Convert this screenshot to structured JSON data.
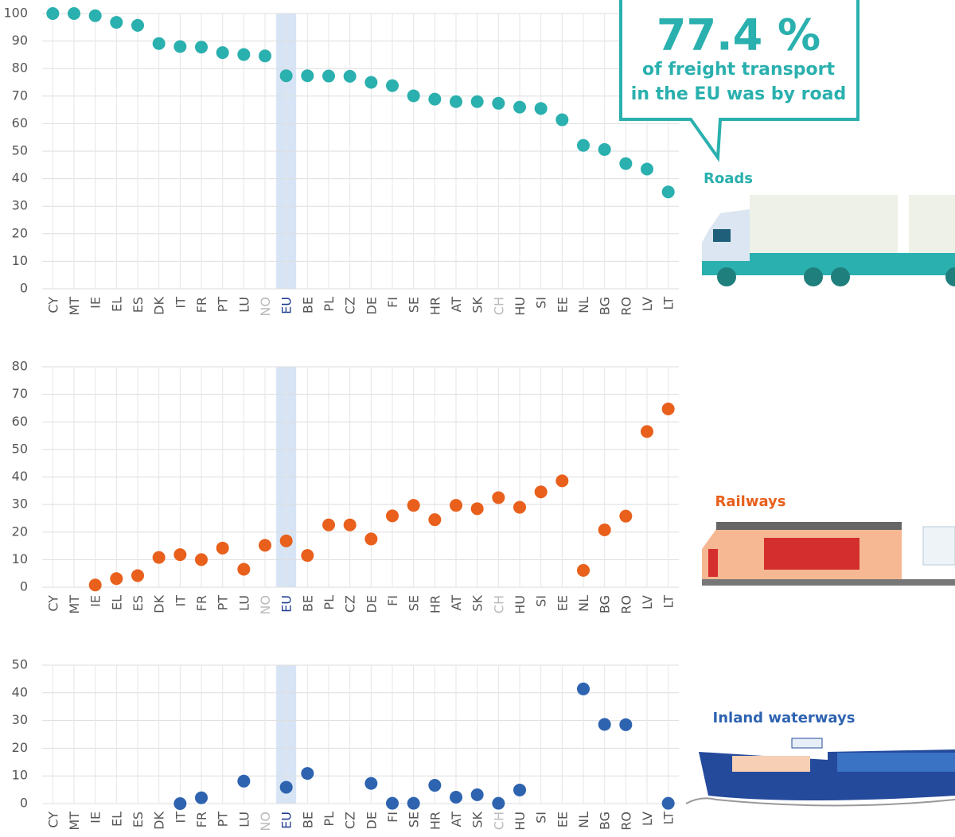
{
  "callout": {
    "headline": "77.4 %",
    "lines": [
      "of freight transport",
      "in the EU was by road"
    ]
  },
  "chart_data": [
    {
      "type": "dot",
      "title": "Roads",
      "color": "#2ab0ae",
      "categories": [
        "CY",
        "MT",
        "IE",
        "EL",
        "ES",
        "DK",
        "IT",
        "FR",
        "PT",
        "LU",
        "NO",
        "EU",
        "BE",
        "PL",
        "CZ",
        "DE",
        "FI",
        "SE",
        "HR",
        "AT",
        "SK",
        "CH",
        "HU",
        "SI",
        "EE",
        "NL",
        "BG",
        "RO",
        "LV",
        "LT"
      ],
      "values": [
        100,
        100,
        99.2,
        96.8,
        95.7,
        89.1,
        88,
        87.8,
        85.8,
        85.1,
        84.6,
        77.4,
        77.4,
        77.3,
        77.2,
        75,
        73.8,
        70.1,
        68.9,
        68,
        68,
        67.4,
        66,
        65.5,
        61.4,
        52.1,
        50.6,
        45.5,
        43.5,
        35.2
      ],
      "ylim": [
        0,
        100
      ],
      "yticks": [
        0,
        10,
        20,
        30,
        40,
        50,
        60,
        70,
        80,
        90,
        100
      ],
      "grid": true,
      "highlight": "EU",
      "muted_categories": [
        "NO",
        "CH"
      ]
    },
    {
      "type": "dot",
      "title": "Railways",
      "color": "#e8601c",
      "categories": [
        "CY",
        "MT",
        "IE",
        "EL",
        "ES",
        "DK",
        "IT",
        "FR",
        "PT",
        "LU",
        "NO",
        "EU",
        "BE",
        "PL",
        "CZ",
        "DE",
        "FI",
        "SE",
        "HR",
        "AT",
        "SK",
        "CH",
        "HU",
        "SI",
        "EE",
        "NL",
        "BG",
        "RO",
        "LV",
        "LT"
      ],
      "values": [
        null,
        null,
        0.8,
        3.1,
        4.2,
        10.8,
        11.8,
        10,
        14.2,
        6.5,
        15.2,
        16.8,
        11.5,
        22.6,
        22.6,
        17.5,
        25.9,
        29.7,
        24.5,
        29.7,
        28.5,
        32.5,
        29,
        34.6,
        38.6,
        6.1,
        20.8,
        25.8,
        56.5,
        64.7
      ],
      "ylim": [
        0,
        80
      ],
      "yticks": [
        0,
        10,
        20,
        30,
        40,
        50,
        60,
        70,
        80
      ],
      "grid": true,
      "highlight": "EU",
      "muted_categories": [
        "NO",
        "CH"
      ]
    },
    {
      "type": "dot",
      "title": "Inland waterways",
      "color": "#2e63b0",
      "categories": [
        "CY",
        "MT",
        "IE",
        "EL",
        "ES",
        "DK",
        "IT",
        "FR",
        "PT",
        "LU",
        "NO",
        "EU",
        "BE",
        "PL",
        "CZ",
        "DE",
        "FI",
        "SE",
        "HR",
        "AT",
        "SK",
        "CH",
        "HU",
        "SI",
        "EE",
        "NL",
        "BG",
        "RO",
        "LV",
        "LT"
      ],
      "values": [
        null,
        null,
        null,
        null,
        null,
        null,
        0,
        2.1,
        null,
        8.1,
        null,
        5.9,
        10.9,
        null,
        null,
        7.3,
        0.1,
        0.1,
        6.6,
        2.3,
        3.2,
        0.1,
        4.9,
        null,
        null,
        41.4,
        28.6,
        28.5,
        null,
        0.1
      ],
      "ylim": [
        0,
        50
      ],
      "yticks": [
        0,
        10,
        20,
        30,
        40,
        50
      ],
      "grid": true,
      "highlight": "EU",
      "muted_categories": [
        "NO",
        "CH"
      ]
    }
  ]
}
